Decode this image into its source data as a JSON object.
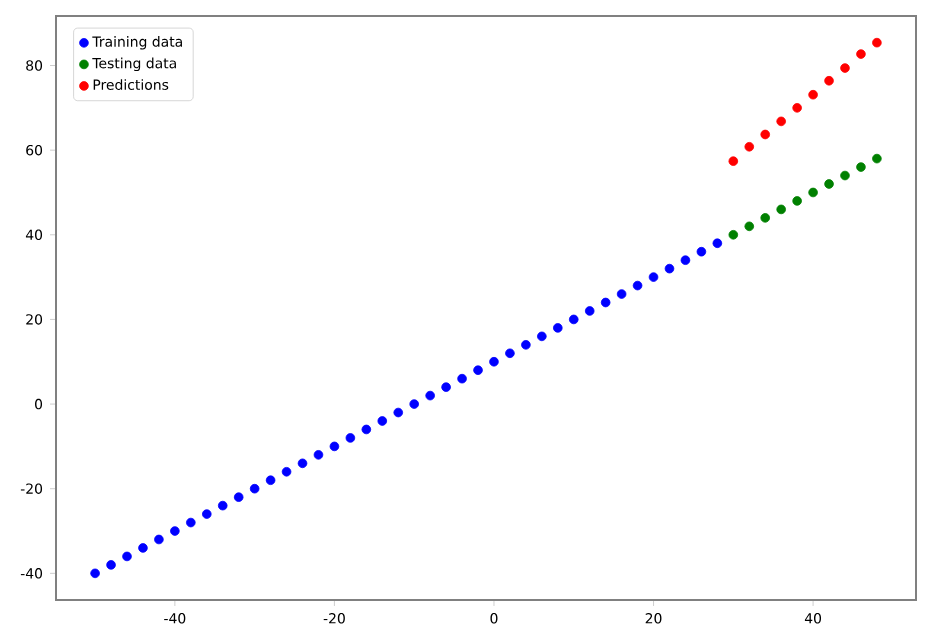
{
  "chart_data": {
    "type": "scatter",
    "marker": "circle",
    "legend": "top left",
    "grid": false,
    "xlim": [
      -54.9,
      52.9
    ],
    "ylim": [
      -46.3,
      91.7
    ],
    "xticks": [
      -40,
      -20,
      0,
      20,
      40
    ],
    "yticks": [
      -40,
      -20,
      0,
      20,
      40,
      60,
      80
    ],
    "series": [
      {
        "name": "Training data",
        "color": "#0000ff",
        "x": [
          -50,
          -48,
          -46,
          -44,
          -42,
          -40,
          -38,
          -36,
          -34,
          -32,
          -30,
          -28,
          -26,
          -24,
          -22,
          -20,
          -18,
          -16,
          -14,
          -12,
          -10,
          -8,
          -6,
          -4,
          -2,
          0,
          2,
          4,
          6,
          8,
          10,
          12,
          14,
          16,
          18,
          20,
          22,
          24,
          26,
          28
        ],
        "values": [
          -40,
          -38,
          -36,
          -34,
          -32,
          -30,
          -28,
          -26,
          -24,
          -22,
          -20,
          -18,
          -16,
          -14,
          -12,
          -10,
          -8,
          -6,
          -4,
          -2,
          0,
          2,
          4,
          6,
          8,
          10,
          12,
          14,
          16,
          18,
          20,
          22,
          24,
          26,
          28,
          30,
          32,
          34,
          36,
          38
        ]
      },
      {
        "name": "Testing data",
        "color": "#008000",
        "x": [
          30,
          32,
          34,
          36,
          38,
          40,
          42,
          44,
          46,
          48
        ],
        "values": [
          40,
          42,
          44,
          46,
          48,
          50,
          52,
          54,
          56,
          58
        ]
      },
      {
        "name": "Predictions",
        "color": "#ff0000",
        "x": [
          30,
          32,
          34,
          36,
          38,
          40,
          42,
          44,
          46,
          48
        ],
        "values": [
          57.4,
          60.8,
          63.7,
          66.8,
          70.0,
          73.1,
          76.4,
          79.4,
          82.7,
          85.4
        ]
      }
    ]
  }
}
